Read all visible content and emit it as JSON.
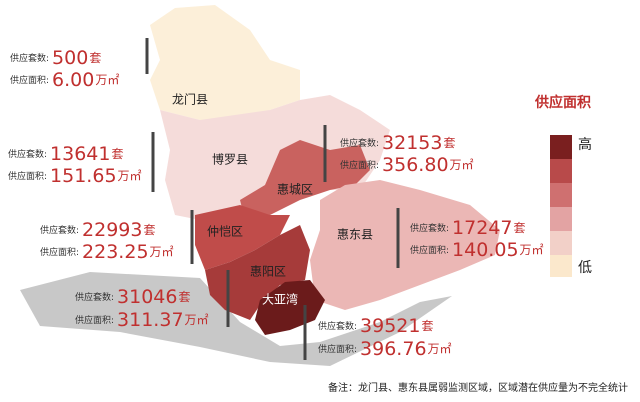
{
  "legend": {
    "title": "供应面积",
    "high": "高",
    "low": "低"
  },
  "labels": {
    "supply": "供应套数:",
    "area": "供应面积:",
    "supply_unit": "套",
    "area_unit": "万㎡"
  },
  "regions": [
    {
      "name": "龙门县",
      "supply": "500",
      "area": "6.00"
    },
    {
      "name": "博罗县",
      "supply": "13641",
      "area": "151.65"
    },
    {
      "name": "惠城区",
      "supply": "32153",
      "area": "356.80"
    },
    {
      "name": "仲恺区",
      "supply": "22993",
      "area": "223.25"
    },
    {
      "name": "惠东县",
      "supply": "17247",
      "area": "140.05"
    },
    {
      "name": "惠阳区",
      "supply": "31046",
      "area": "311.37"
    },
    {
      "name": "大亚湾",
      "supply": "39521",
      "area": "396.76"
    }
  ],
  "footnote": "备注：龙门县、惠东县属弱监测区域，区域潜在供应量为不完全统计"
}
